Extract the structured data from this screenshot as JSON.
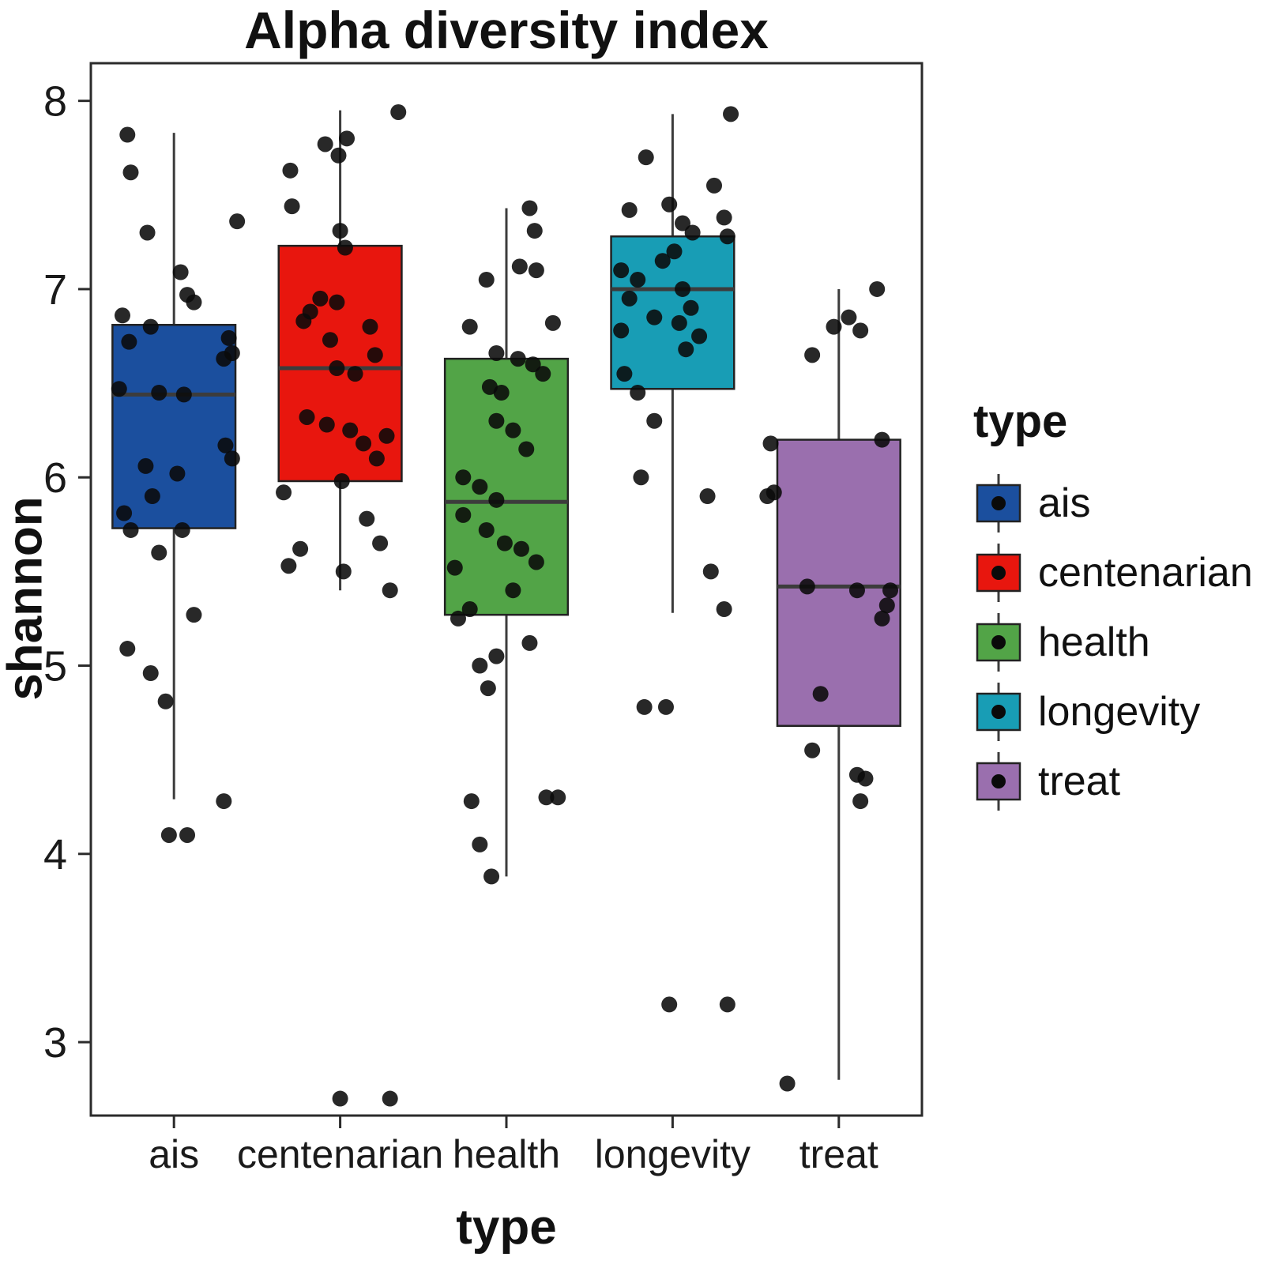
{
  "chart": {
    "title": "Alpha diversity index",
    "xlabel": "type",
    "ylabel": "shannon"
  },
  "legend": {
    "title": "type",
    "items": [
      {
        "label": "ais",
        "color": "#1b4f9e"
      },
      {
        "label": "centenarian",
        "color": "#e8160e"
      },
      {
        "label": "health",
        "color": "#52a447"
      },
      {
        "label": "longevity",
        "color": "#189db5"
      },
      {
        "label": "treat",
        "color": "#9a6fae"
      }
    ]
  },
  "chart_data": {
    "type": "boxplot",
    "title": "Alpha diversity index",
    "xlabel": "type",
    "ylabel": "shannon",
    "ylim": [
      2.61,
      8.2
    ],
    "yticks": [
      3,
      4,
      5,
      6,
      7,
      8
    ],
    "grid": false,
    "legend_position": "right",
    "categories": [
      "ais",
      "centenarian",
      "health",
      "longevity",
      "treat"
    ],
    "series": [
      {
        "name": "ais",
        "color": "#1b4f9e",
        "whisker_low": 4.29,
        "q1": 5.73,
        "median": 6.44,
        "q3": 6.81,
        "whisker_high": 7.83,
        "points": [
          [
            7.82,
            -0.28
          ],
          [
            7.62,
            -0.26
          ],
          [
            7.36,
            0.38
          ],
          [
            7.3,
            -0.16
          ],
          [
            7.09,
            0.04
          ],
          [
            6.97,
            0.08
          ],
          [
            6.93,
            0.12
          ],
          [
            6.86,
            -0.31
          ],
          [
            6.8,
            -0.14
          ],
          [
            6.74,
            0.33
          ],
          [
            6.72,
            -0.27
          ],
          [
            6.66,
            0.35
          ],
          [
            6.63,
            0.3
          ],
          [
            6.47,
            -0.33
          ],
          [
            6.45,
            -0.09
          ],
          [
            6.44,
            0.06
          ],
          [
            6.17,
            0.31
          ],
          [
            6.1,
            0.35
          ],
          [
            6.06,
            -0.17
          ],
          [
            6.02,
            0.02
          ],
          [
            5.9,
            -0.13
          ],
          [
            5.81,
            -0.3
          ],
          [
            5.72,
            -0.26
          ],
          [
            5.72,
            0.05
          ],
          [
            5.6,
            -0.09
          ],
          [
            5.27,
            0.12
          ],
          [
            5.09,
            -0.28
          ],
          [
            4.96,
            -0.14
          ],
          [
            4.81,
            -0.05
          ],
          [
            4.28,
            0.3
          ],
          [
            4.1,
            -0.03
          ],
          [
            4.1,
            0.08
          ]
        ]
      },
      {
        "name": "centenarian",
        "color": "#e8160e",
        "whisker_low": 5.4,
        "q1": 5.98,
        "median": 6.58,
        "q3": 7.23,
        "whisker_high": 7.95,
        "points": [
          [
            7.94,
            0.35
          ],
          [
            7.8,
            0.04
          ],
          [
            7.77,
            -0.09
          ],
          [
            7.71,
            -0.01
          ],
          [
            7.63,
            -0.3
          ],
          [
            7.44,
            -0.29
          ],
          [
            7.31,
            0.0
          ],
          [
            7.22,
            0.03
          ],
          [
            6.95,
            -0.12
          ],
          [
            6.93,
            -0.02
          ],
          [
            6.88,
            -0.18
          ],
          [
            6.83,
            -0.22
          ],
          [
            6.8,
            0.18
          ],
          [
            6.73,
            -0.06
          ],
          [
            6.65,
            0.21
          ],
          [
            6.58,
            -0.02
          ],
          [
            6.55,
            0.09
          ],
          [
            6.32,
            -0.2
          ],
          [
            6.28,
            -0.08
          ],
          [
            6.25,
            0.06
          ],
          [
            6.22,
            0.28
          ],
          [
            6.18,
            0.14
          ],
          [
            6.1,
            0.22
          ],
          [
            5.98,
            0.01
          ],
          [
            5.92,
            -0.34
          ],
          [
            5.78,
            0.16
          ],
          [
            5.65,
            0.24
          ],
          [
            5.62,
            -0.24
          ],
          [
            5.53,
            -0.31
          ],
          [
            5.5,
            0.02
          ],
          [
            5.4,
            0.3
          ],
          [
            2.7,
            0.0
          ],
          [
            2.7,
            0.3
          ]
        ]
      },
      {
        "name": "health",
        "color": "#52a447",
        "whisker_low": 3.88,
        "q1": 5.27,
        "median": 5.87,
        "q3": 6.63,
        "whisker_high": 7.43,
        "points": [
          [
            7.43,
            0.14
          ],
          [
            7.31,
            0.17
          ],
          [
            7.12,
            0.08
          ],
          [
            7.1,
            0.18
          ],
          [
            7.05,
            -0.12
          ],
          [
            6.82,
            0.28
          ],
          [
            6.8,
            -0.22
          ],
          [
            6.66,
            -0.06
          ],
          [
            6.63,
            0.07
          ],
          [
            6.6,
            0.16
          ],
          [
            6.55,
            0.22
          ],
          [
            6.48,
            -0.1
          ],
          [
            6.45,
            -0.03
          ],
          [
            6.3,
            -0.06
          ],
          [
            6.25,
            0.04
          ],
          [
            6.15,
            0.12
          ],
          [
            6.0,
            -0.26
          ],
          [
            5.95,
            -0.16
          ],
          [
            5.88,
            -0.06
          ],
          [
            5.8,
            -0.26
          ],
          [
            5.72,
            -0.12
          ],
          [
            5.65,
            -0.01
          ],
          [
            5.62,
            0.09
          ],
          [
            5.55,
            0.18
          ],
          [
            5.52,
            -0.31
          ],
          [
            5.4,
            0.04
          ],
          [
            5.3,
            -0.22
          ],
          [
            5.25,
            -0.29
          ],
          [
            5.12,
            0.14
          ],
          [
            5.05,
            -0.06
          ],
          [
            5.0,
            -0.16
          ],
          [
            4.88,
            -0.11
          ],
          [
            4.3,
            0.24
          ],
          [
            4.3,
            0.31
          ],
          [
            4.28,
            -0.21
          ],
          [
            4.05,
            -0.16
          ],
          [
            3.88,
            -0.09
          ]
        ]
      },
      {
        "name": "longevity",
        "color": "#189db5",
        "whisker_low": 5.28,
        "q1": 6.47,
        "median": 7.0,
        "q3": 7.28,
        "whisker_high": 7.93,
        "points": [
          [
            7.93,
            0.35
          ],
          [
            7.7,
            -0.16
          ],
          [
            7.55,
            0.25
          ],
          [
            7.45,
            -0.02
          ],
          [
            7.42,
            -0.26
          ],
          [
            7.38,
            0.31
          ],
          [
            7.35,
            0.06
          ],
          [
            7.3,
            0.12
          ],
          [
            7.28,
            0.33
          ],
          [
            7.2,
            0.01
          ],
          [
            7.15,
            -0.06
          ],
          [
            7.1,
            -0.31
          ],
          [
            7.05,
            -0.21
          ],
          [
            7.0,
            0.06
          ],
          [
            6.95,
            -0.26
          ],
          [
            6.9,
            0.11
          ],
          [
            6.85,
            -0.11
          ],
          [
            6.82,
            0.04
          ],
          [
            6.78,
            -0.31
          ],
          [
            6.75,
            0.16
          ],
          [
            6.68,
            0.08
          ],
          [
            6.55,
            -0.29
          ],
          [
            6.45,
            -0.21
          ],
          [
            6.3,
            -0.11
          ],
          [
            6.0,
            -0.19
          ],
          [
            5.9,
            0.21
          ],
          [
            5.5,
            0.23
          ],
          [
            5.3,
            0.31
          ],
          [
            4.78,
            -0.17
          ],
          [
            4.78,
            -0.04
          ],
          [
            3.2,
            -0.02
          ],
          [
            3.2,
            0.33
          ]
        ]
      },
      {
        "name": "treat",
        "color": "#9a6fae",
        "whisker_low": 2.8,
        "q1": 4.68,
        "median": 5.42,
        "q3": 6.2,
        "whisker_high": 7.0,
        "points": [
          [
            7.0,
            0.23
          ],
          [
            6.85,
            0.06
          ],
          [
            6.8,
            -0.03
          ],
          [
            6.78,
            0.13
          ],
          [
            6.65,
            -0.16
          ],
          [
            6.2,
            0.26
          ],
          [
            6.18,
            -0.41
          ],
          [
            5.92,
            -0.39
          ],
          [
            5.9,
            -0.43
          ],
          [
            5.42,
            -0.19
          ],
          [
            5.4,
            0.11
          ],
          [
            5.4,
            0.31
          ],
          [
            5.32,
            0.29
          ],
          [
            5.25,
            0.26
          ],
          [
            4.85,
            -0.11
          ],
          [
            4.55,
            -0.16
          ],
          [
            4.42,
            0.11
          ],
          [
            4.4,
            0.16
          ],
          [
            4.28,
            0.13
          ],
          [
            2.78,
            -0.31
          ]
        ]
      }
    ]
  }
}
